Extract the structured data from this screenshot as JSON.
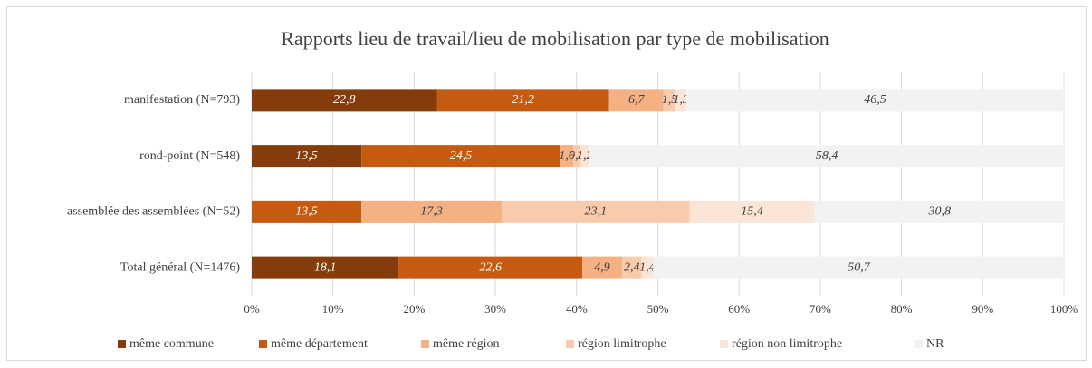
{
  "chart_data": {
    "type": "stacked-bar-horizontal",
    "title": "Rapports lieu de travail/lieu de mobilisation par type de mobilisation",
    "categories": [
      "manifestation (N=793)",
      "rond-point (N=548)",
      "assemblée des assemblées (N=52)",
      "Total général (N=1476)"
    ],
    "series": [
      {
        "name": "même commune",
        "color": "#843c0c",
        "values": [
          22.8,
          13.5,
          0,
          18.1
        ],
        "value_labels": [
          "22,8",
          "13,5",
          "0",
          "18,1"
        ]
      },
      {
        "name": "même département",
        "color": "#c55a11",
        "values": [
          21.2,
          24.5,
          13.5,
          22.6
        ],
        "value_labels": [
          "21,2",
          "24,5",
          "13,5",
          "22,6"
        ]
      },
      {
        "name": "même région",
        "color": "#f4b183",
        "values": [
          6.7,
          1.6,
          17.3,
          4.9
        ],
        "value_labels": [
          "6,7",
          "1,6",
          "17,3",
          "4,9"
        ]
      },
      {
        "name": "région limitrophe",
        "color": "#f8cbad",
        "values": [
          1.5,
          0.8,
          23.1,
          2.4
        ],
        "value_labels": [
          "1,5",
          "0,8",
          "23,1",
          "2,4"
        ]
      },
      {
        "name": "région non limitrophe",
        "color": "#fbe5d6",
        "values": [
          1.3,
          1.2,
          15.4,
          1.4
        ],
        "value_labels": [
          "1,3",
          "1,2",
          "15,4",
          "1,4"
        ]
      },
      {
        "name": "NR",
        "color": "#f2f2f2",
        "values": [
          46.5,
          58.4,
          30.8,
          50.7
        ],
        "value_labels": [
          "46,5",
          "58,4",
          "30,8",
          "50,7"
        ]
      }
    ],
    "xlim": [
      0,
      100
    ],
    "xticks": [
      {
        "value": 0,
        "label": "0%"
      },
      {
        "value": 10,
        "label": "10%"
      },
      {
        "value": 20,
        "label": "20%"
      },
      {
        "value": 30,
        "label": "30%"
      },
      {
        "value": 40,
        "label": "40%"
      },
      {
        "value": 50,
        "label": "50%"
      },
      {
        "value": 60,
        "label": "60%"
      },
      {
        "value": 70,
        "label": "70%"
      },
      {
        "value": 80,
        "label": "80%"
      },
      {
        "value": 90,
        "label": "90%"
      },
      {
        "value": 100,
        "label": "100%"
      }
    ],
    "grid": true,
    "legend": "bottom"
  }
}
